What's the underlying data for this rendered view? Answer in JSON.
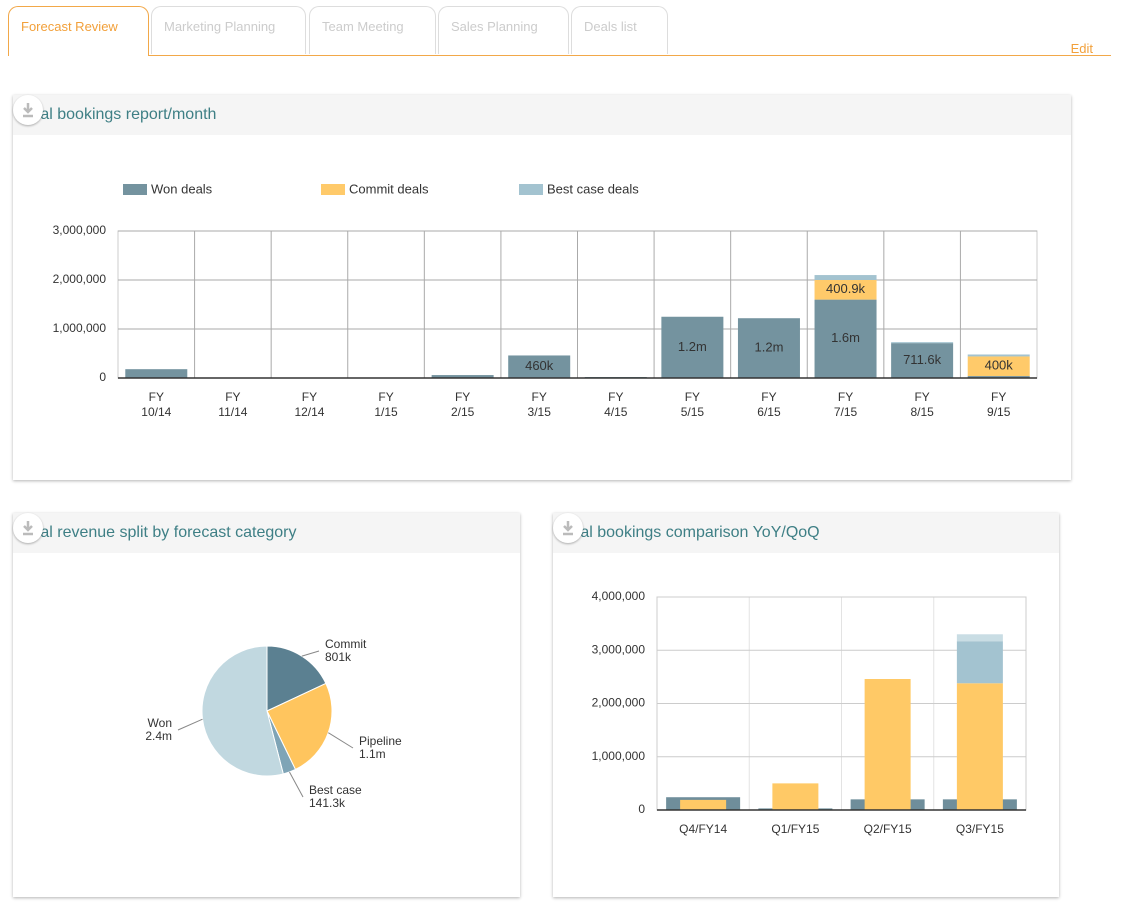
{
  "tabs": [
    "Forecast Review",
    "Marketing Planning",
    "Team Meeting",
    "Sales Planning",
    "Deals list"
  ],
  "edit": "Edit",
  "chart_data": [
    {
      "type": "bar",
      "stacked": true,
      "title": "Total bookings report/month",
      "categories": [
        "FY 10/14",
        "FY 11/14",
        "FY 12/14",
        "FY 1/15",
        "FY 2/15",
        "FY 3/15",
        "FY 4/15",
        "FY 5/15",
        "FY 6/15",
        "FY 7/15",
        "FY 8/15",
        "FY 9/15"
      ],
      "series": [
        {
          "name": "Won deals",
          "color": "#74939f",
          "values": [
            180000,
            10000,
            10000,
            10000,
            60000,
            460000,
            20000,
            1250000,
            1220000,
            1600000,
            711600,
            40000
          ],
          "value_labels": [
            null,
            null,
            null,
            null,
            null,
            "460k",
            null,
            "1.2m",
            "1.2m",
            "1.6m",
            "711.6k",
            null
          ]
        },
        {
          "name": "Commit deals",
          "color": "#ffca6a",
          "values": [
            0,
            0,
            0,
            0,
            0,
            0,
            0,
            0,
            0,
            400900,
            0,
            400000
          ],
          "value_labels": [
            null,
            null,
            null,
            null,
            null,
            null,
            null,
            null,
            null,
            "400.9k",
            null,
            "400k"
          ]
        },
        {
          "name": "Best case deals",
          "color": "#a3c3d0",
          "values": [
            0,
            0,
            0,
            0,
            0,
            0,
            0,
            0,
            0,
            100000,
            20000,
            40000
          ]
        }
      ],
      "ylim": [
        0,
        3000000
      ],
      "yticks": [
        0,
        {
          "value": 1000000,
          "label": "1,000,000"
        },
        {
          "value": 2000000,
          "label": "2,000,000"
        },
        {
          "value": 3000000,
          "label": "3,000,000"
        }
      ],
      "grid": true,
      "legend": "top-left"
    },
    {
      "type": "pie",
      "title": "Total revenue split by forecast category",
      "categories": [
        "Commit",
        "Pipeline",
        "Best case",
        "Won"
      ],
      "values": [
        801000,
        1100000,
        141300,
        2400000
      ],
      "value_labels": [
        "801k",
        "1.1m",
        "141.3k",
        "2.4m"
      ],
      "colors": [
        "#5b8091",
        "#ffc55e",
        "#7fa4b6",
        "#c1d8e0"
      ]
    },
    {
      "type": "bar",
      "stacked": true,
      "title": "Total bookings comparison YoY/QoQ",
      "categories": [
        "Q4/FY14",
        "Q1/FY15",
        "Q2/FY15",
        "Q3/FY15"
      ],
      "series": [
        {
          "color": "#6f8e9b",
          "values": [
            240000,
            30000,
            200000,
            200000
          ]
        },
        {
          "color": "#ffc966",
          "values": [
            190000,
            500000,
            2460000,
            2380000
          ]
        },
        {
          "color": "#a3c3d0",
          "values": [
            0,
            0,
            0,
            790000
          ]
        },
        {
          "color": "#c9dde4",
          "values": [
            0,
            0,
            0,
            130000
          ]
        }
      ],
      "ylim": [
        0,
        4000000
      ],
      "yticks": [
        0,
        {
          "value": 1000000,
          "label": "1,000,000"
        },
        {
          "value": 2000000,
          "label": "2,000,000"
        },
        {
          "value": 3000000,
          "label": "3,000,000"
        },
        {
          "value": 4000000,
          "label": "4,000,000"
        }
      ],
      "grid": true
    }
  ]
}
